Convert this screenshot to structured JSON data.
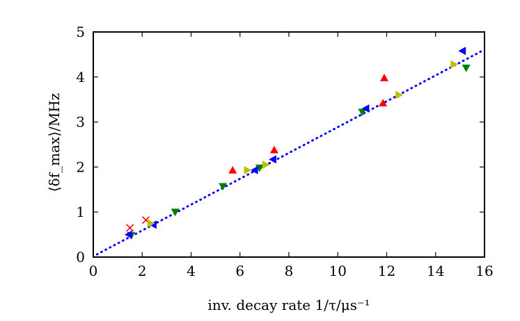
{
  "chart_data": {
    "type": "scatter",
    "title": "",
    "xlabel": "inv. decay rate 1/τ/μs⁻¹",
    "ylabel": "⟨δf_max⟩/MHz",
    "xlim": [
      0,
      16
    ],
    "ylim": [
      0,
      5
    ],
    "xticks": [
      "0",
      "2",
      "4",
      "6",
      "8",
      "10",
      "12",
      "14",
      "16"
    ],
    "yticks": [
      "0",
      "1",
      "2",
      "3",
      "4",
      "5"
    ],
    "grid": false,
    "legend": "none",
    "series": [
      {
        "marker": "x",
        "color": "#ff0000",
        "points": [
          [
            1.5,
            0.65
          ],
          [
            2.15,
            0.82
          ]
        ]
      },
      {
        "marker": "triangle-up",
        "color": "#ff0000",
        "points": [
          [
            5.7,
            1.93
          ],
          [
            7.4,
            2.38
          ],
          [
            11.85,
            3.42
          ],
          [
            11.9,
            3.98
          ]
        ]
      },
      {
        "marker": "triangle-down",
        "color": "#008000",
        "points": [
          [
            1.55,
            0.48
          ],
          [
            3.35,
            1.0
          ],
          [
            5.3,
            1.57
          ],
          [
            6.8,
            1.98
          ],
          [
            11.0,
            3.22
          ],
          [
            15.25,
            4.2
          ]
        ]
      },
      {
        "marker": "triangle-left",
        "color": "#0000ff",
        "points": [
          [
            1.45,
            0.5
          ],
          [
            2.45,
            0.72
          ],
          [
            6.6,
            1.93
          ],
          [
            7.35,
            2.17
          ],
          [
            11.15,
            3.3
          ],
          [
            15.1,
            4.58
          ]
        ]
      },
      {
        "marker": "triangle-right",
        "color": "#bfbf00",
        "points": [
          [
            2.35,
            0.75
          ],
          [
            6.3,
            1.93
          ],
          [
            7.05,
            2.05
          ],
          [
            12.5,
            3.6
          ],
          [
            14.75,
            4.28
          ]
        ]
      }
    ],
    "fit_line": {
      "style": "dotted",
      "color": "#0000ff",
      "x": [
        0.15,
        15.9
      ],
      "y": [
        0.06,
        4.58
      ]
    }
  }
}
